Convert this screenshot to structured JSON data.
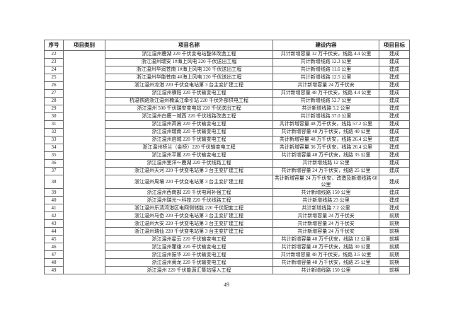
{
  "page": {
    "number": "49"
  },
  "table": {
    "headers": {
      "no": "序号",
      "category": "项目类别",
      "name": "项目名称",
      "content": "建设内容",
      "target": "项目目标"
    },
    "category_value": "",
    "rows": [
      {
        "no": "22",
        "name": "浙江温州鹿湖 220 千伏变电站整体改造工程",
        "content": "共计新增容量 12 万千伏安，线路 4.4 公里",
        "target": "建成"
      },
      {
        "no": "23",
        "name": "浙江温州瑞安 1#海上风电 220 千伏送出工程",
        "content": "共计新增线路 12.3 公里",
        "target": "建成"
      },
      {
        "no": "24",
        "name": "浙江温州华润苍南 1#海上风电 220 千伏送出工程",
        "content": "共计新增线路 11.6 公里",
        "target": "建成"
      },
      {
        "no": "25",
        "name": "浙江温州华能苍南 4#海上风电 220 千伏送出工程",
        "content": "共计新增线路 12.5 公里",
        "target": "建成"
      },
      {
        "no": "26",
        "name": "浙江温州龙港 220 千伏变电站第 3 台主变扩建工程",
        "content": "共计新增容量 24 万千伏安",
        "target": "建成"
      },
      {
        "no": "27",
        "name": "浙江温州横阳 220 千伏输变电工程",
        "content": "共计新增容量 48 万千伏安，线路 4.4 公里",
        "target": "建成"
      },
      {
        "no": "28",
        "name": "杭温铁路浙江温州楠溪江牵引站 220 千伏外部供电工程",
        "content": "共计新增线路 52.7 公里",
        "target": "建成"
      },
      {
        "no": "29",
        "name": "浙江温州 500 千伏瑞安变电站 220 千伏送出工程",
        "content": "共计新增线路 5.2 公里",
        "target": "建成"
      },
      {
        "no": "30",
        "name": "浙江温州白鹿－城西 220 千伏线路改造工程",
        "content": "共计新增线路 37.0 公里",
        "target": "建成"
      },
      {
        "no": "31",
        "name": "浙江温州高嵩 220 千伏输变电工程",
        "content": "共计新增容量 48 万千伏安，线路 57.2 公里",
        "target": "建成"
      },
      {
        "no": "32",
        "name": "浙江温州瑞南 220 千伏输变电工程",
        "content": "共计新增容量 48 万千伏安，线路 40 公里",
        "target": "建成"
      },
      {
        "no": "33",
        "name": "浙江温州启城 220 千伏输变电工程",
        "content": "共计新增容量 48 万千伏安，线路 26.4 公里",
        "target": "建成"
      },
      {
        "no": "34",
        "name": "浙江温州桥兰（金桥）220 千伏输变电工程",
        "content": "共计新增容量 36 万千伏安，线路 26.4 公里",
        "target": "建成"
      },
      {
        "no": "35",
        "name": "浙江温州平鳌 220 千伏输变电工程",
        "content": "共计新增容量 48 万千伏安，线路 35 公里",
        "target": "建成"
      },
      {
        "no": "36",
        "name": "浙江温州里洋～鹿湖 220 千伏线路工程",
        "content": "共计新增线路 12 公里",
        "target": "建成"
      },
      {
        "no": "37",
        "name": "浙江温州天河 220 千伏变电站第 3 台主变扩建工程",
        "content": "共计新增容量 24 万千伏安，线路 25 公里",
        "target": "建成"
      },
      {
        "no": "38",
        "name": "浙江温州周壤 220 千伏变电站第 3 台主变扩建工程",
        "content": "共计新增容量 24 万千伏安，改造及新增线路 60 公里",
        "target": "建成"
      },
      {
        "no": "39",
        "name": "浙江温州西南部 220 千伏电网补强工程",
        "content": "共计新增线路 150 公里",
        "target": "建成"
      },
      {
        "no": "40",
        "name": "浙江温州瑞光～科技 220 千伏线路工程",
        "content": "共计新增线路 23 公里",
        "target": "建成"
      },
      {
        "no": "41",
        "name": "浙江温州乐清湾港区电网侧储能 220 千伏配套工程",
        "content": "共计新增线路 7.2 公里",
        "target": "建成"
      },
      {
        "no": "42",
        "name": "浙江温州马岙 220 千伏变电站第 3 台主变扩建工程",
        "content": "共计新增容量 24 万千伏安",
        "target": "前期"
      },
      {
        "no": "43",
        "name": "浙江温州大安 220 千伏变电站第 3 台主变扩建工程",
        "content": "共计新增容量 24 万千伏安",
        "target": "前期"
      },
      {
        "no": "44",
        "name": "浙江温州瑞仙 220 千伏变电站第 3 台主变扩建工程",
        "content": "共计新增容量 24 万千伏安",
        "target": "前期"
      },
      {
        "no": "45",
        "name": "浙江温州星云 220 千伏输变电工程",
        "content": "共计新增容量 48 万千伏安，线路 12 公里",
        "target": "前期"
      },
      {
        "no": "46",
        "name": "浙江温州瞿雄 220 千伏输变电工程",
        "content": "共计新增容量 48 万千伏安，线路 30 公里",
        "target": "前期"
      },
      {
        "no": "47",
        "name": "浙江温州振华 220 千伏输变电工程",
        "content": "共计新增容量 48 万千伏安，线路 3.5 公里",
        "target": "前期"
      },
      {
        "no": "48",
        "name": "浙江温州黄龙 220 千伏输变电工程",
        "content": "共计新增容量 48 万千伏安，线路 25 公里",
        "target": "前期"
      },
      {
        "no": "49",
        "name": "浙江温州 220 千伏能源汇集站接入工程",
        "content": "共计新增线路 150 公里",
        "target": "前期"
      }
    ]
  }
}
